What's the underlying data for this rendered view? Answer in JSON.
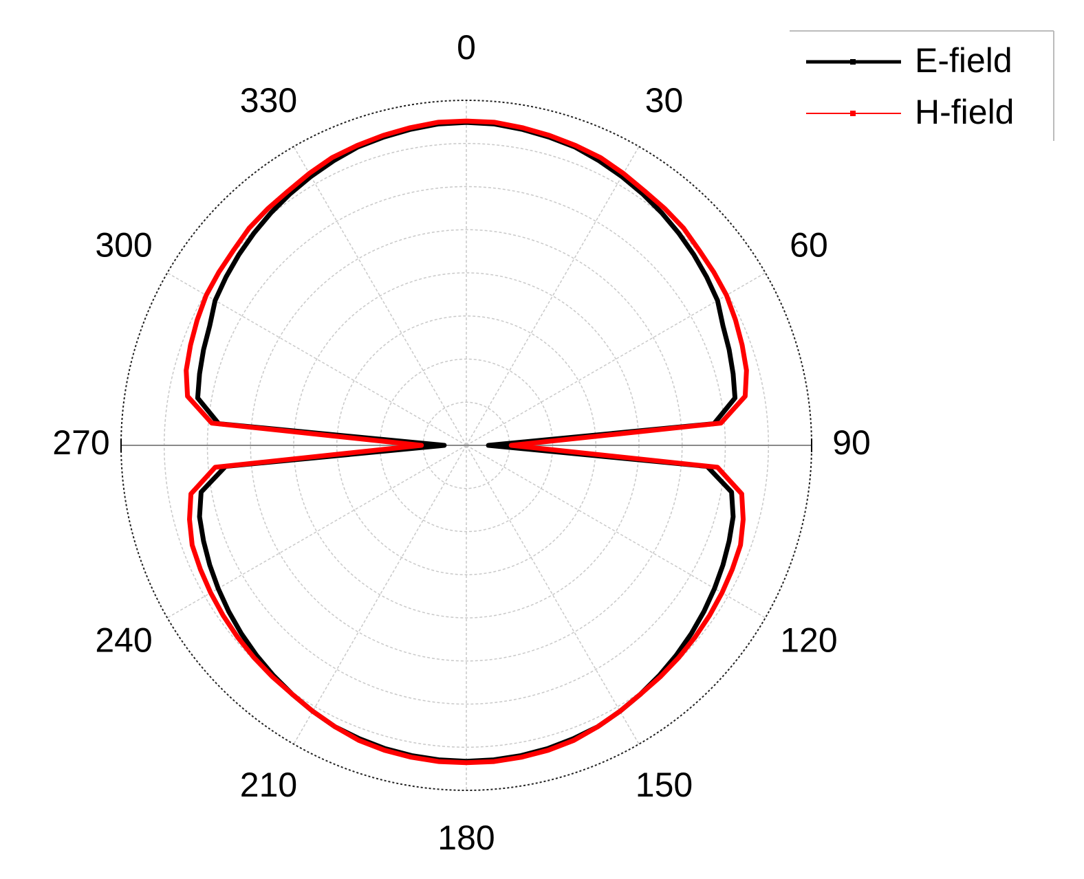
{
  "chart_data": {
    "type": "polar",
    "theta": [
      0,
      5,
      10,
      15,
      20,
      25,
      30,
      35,
      40,
      45,
      50,
      55,
      60,
      65,
      70,
      75,
      80,
      85,
      90,
      95,
      100,
      105,
      110,
      115,
      120,
      125,
      130,
      135,
      140,
      145,
      150,
      155,
      160,
      165,
      170,
      175,
      180,
      185,
      190,
      195,
      200,
      205,
      210,
      215,
      220,
      225,
      230,
      235,
      240,
      245,
      250,
      255,
      260,
      265,
      270,
      275,
      280,
      285,
      290,
      295,
      300,
      305,
      310,
      315,
      320,
      325,
      330,
      335,
      340,
      345,
      350,
      355
    ],
    "series": [
      {
        "name": "E-field",
        "color": "#000000",
        "values": [
          0.936,
          0.935,
          0.93,
          0.925,
          0.92,
          0.91,
          0.9,
          0.89,
          0.88,
          0.87,
          0.86,
          0.85,
          0.84,
          0.82,
          0.81,
          0.8,
          0.79,
          0.72,
          0.064,
          0.7,
          0.78,
          0.8,
          0.81,
          0.82,
          0.83,
          0.84,
          0.85,
          0.86,
          0.87,
          0.88,
          0.89,
          0.9,
          0.905,
          0.91,
          0.913,
          0.915,
          0.916,
          0.915,
          0.913,
          0.91,
          0.905,
          0.9,
          0.89,
          0.88,
          0.87,
          0.86,
          0.85,
          0.84,
          0.83,
          0.82,
          0.81,
          0.8,
          0.78,
          0.7,
          0.064,
          0.72,
          0.79,
          0.8,
          0.81,
          0.82,
          0.84,
          0.85,
          0.86,
          0.87,
          0.88,
          0.89,
          0.9,
          0.91,
          0.92,
          0.925,
          0.93,
          0.935
        ]
      },
      {
        "name": "H-field",
        "color": "#ff0000",
        "values": [
          0.94,
          0.94,
          0.935,
          0.93,
          0.925,
          0.92,
          0.91,
          0.9,
          0.895,
          0.89,
          0.88,
          0.875,
          0.87,
          0.86,
          0.85,
          0.84,
          0.82,
          0.74,
          0.13,
          0.73,
          0.81,
          0.83,
          0.845,
          0.85,
          0.855,
          0.86,
          0.865,
          0.87,
          0.875,
          0.88,
          0.89,
          0.9,
          0.91,
          0.915,
          0.918,
          0.92,
          0.92,
          0.92,
          0.918,
          0.915,
          0.91,
          0.9,
          0.89,
          0.88,
          0.875,
          0.87,
          0.865,
          0.86,
          0.855,
          0.85,
          0.845,
          0.83,
          0.81,
          0.73,
          0.13,
          0.74,
          0.82,
          0.84,
          0.85,
          0.86,
          0.87,
          0.875,
          0.88,
          0.89,
          0.895,
          0.9,
          0.91,
          0.92,
          0.925,
          0.93,
          0.935,
          0.94
        ]
      }
    ],
    "rlim": [
      0,
      1
    ],
    "rticks": [
      0.125,
      0.25,
      0.375,
      0.5,
      0.625,
      0.75,
      0.875,
      1
    ],
    "thetaticks": [
      0,
      30,
      60,
      90,
      120,
      150,
      180,
      210,
      240,
      270,
      300,
      330
    ],
    "direction": "clockwise",
    "zero": "top",
    "grid": true,
    "legend": "top-right"
  }
}
